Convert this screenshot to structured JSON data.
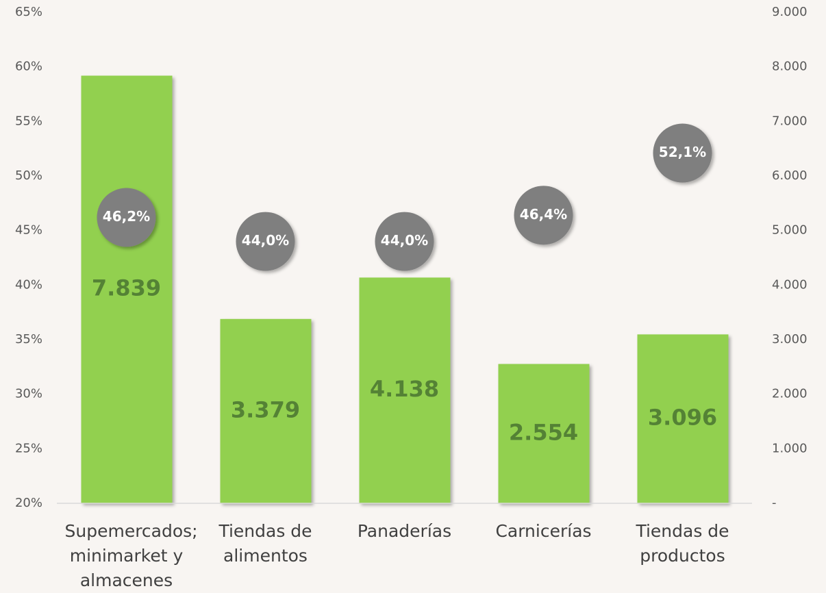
{
  "chart_data": {
    "type": "bar",
    "categories": [
      "Supemercados; minimarket y almacenes",
      "Tiendas de alimentos",
      "Panaderías",
      "Carnicerías",
      "Tiendas de productos"
    ],
    "series": [
      {
        "type": "bar",
        "axis": "y2",
        "color": "#92d050",
        "values": [
          7839,
          3379,
          4138,
          2554,
          3096
        ],
        "value_labels": [
          "7.839",
          "3.379",
          "4.138",
          "2.554",
          "3.096"
        ]
      },
      {
        "type": "scatter",
        "color": "#7f7f7f",
        "values": [
          46.2,
          44.0,
          44.0,
          46.4,
          52.1
        ],
        "value_labels": [
          "46,2%",
          "44,0%",
          "44,0%",
          "46,4%",
          "52,1%"
        ]
      }
    ],
    "ylim": [
      20,
      65
    ],
    "yticks": [
      {
        "value": 20,
        "label": "20%"
      },
      {
        "value": 25,
        "label": "25%"
      },
      {
        "value": 30,
        "label": "30%"
      },
      {
        "value": 35,
        "label": "35%"
      },
      {
        "value": 40,
        "label": "40%"
      },
      {
        "value": 45,
        "label": "45%"
      },
      {
        "value": 50,
        "label": "50%"
      },
      {
        "value": 55,
        "label": "55%"
      },
      {
        "value": 60,
        "label": "60%"
      },
      {
        "value": 65,
        "label": "65%"
      }
    ],
    "y2lim": [
      0,
      9000
    ],
    "y2ticks": [
      {
        "value": 0,
        "label": "-"
      },
      {
        "value": 1000,
        "label": "1.000"
      },
      {
        "value": 2000,
        "label": "2.000"
      },
      {
        "value": 3000,
        "label": "3.000"
      },
      {
        "value": 4000,
        "label": "4.000"
      },
      {
        "value": 5000,
        "label": "5.000"
      },
      {
        "value": 6000,
        "label": "6.000"
      },
      {
        "value": 7000,
        "label": "7.000"
      },
      {
        "value": 8000,
        "label": "8.000"
      },
      {
        "value": 9000,
        "label": "9.000"
      }
    ],
    "grid": false
  }
}
